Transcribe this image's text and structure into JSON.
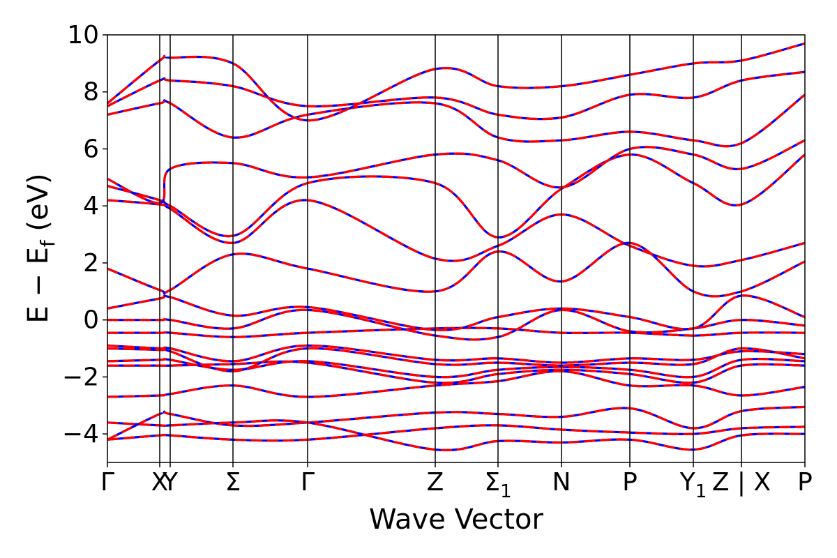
{
  "chart_data": {
    "type": "line",
    "title": "",
    "xlabel": "Wave Vector",
    "ylabel": "E − E_f (eV)",
    "ylabel_parts": {
      "main": "E − E",
      "sub": "f",
      "unit": " (eV)"
    },
    "ylim": [
      -5,
      10
    ],
    "yticks": [
      -4,
      -2,
      0,
      2,
      4,
      6,
      8,
      10
    ],
    "ytick_labels": [
      "−4",
      "−2",
      "0",
      "2",
      "4",
      "6",
      "8",
      "10"
    ],
    "xlim": [
      0,
      1000
    ],
    "kpoints": [
      {
        "x": 0,
        "label": "Γ"
      },
      {
        "x": 75,
        "label": "X"
      },
      {
        "x": 90,
        "label": "Y"
      },
      {
        "x": 180,
        "label": "Σ"
      },
      {
        "x": 287,
        "label": "Γ"
      },
      {
        "x": 470,
        "label": "Z"
      },
      {
        "x": 560,
        "label": "Σ",
        "sub": "1"
      },
      {
        "x": 651,
        "label": "N"
      },
      {
        "x": 749,
        "label": "P"
      },
      {
        "x": 840,
        "label": "Y",
        "sub": "1"
      },
      {
        "x": 909,
        "label": "Z|X",
        "display": "Z | X"
      },
      {
        "x": 1000,
        "label": "P"
      }
    ],
    "band_colors": {
      "primary": "#ff0000",
      "overlay": "#0000ff"
    },
    "grid": false,
    "legend": "none",
    "bands": [
      {
        "x": [
          0,
          75,
          90,
          180,
          287,
          470,
          560,
          651,
          749,
          840,
          909,
          1000
        ],
        "y": [
          -4.2,
          -3.3,
          -3.3,
          -3.7,
          -3.6,
          -3.25,
          -3.3,
          -3.4,
          -3.1,
          -3.8,
          -3.2,
          -3.05
        ]
      },
      {
        "x": [
          0,
          75,
          90,
          180,
          287,
          470,
          560,
          651,
          749,
          840,
          909,
          1000
        ],
        "y": [
          -4.2,
          -4.05,
          -4.05,
          -4.2,
          -4.2,
          -3.8,
          -3.7,
          -3.85,
          -3.95,
          -4.0,
          -3.8,
          -3.75
        ]
      },
      {
        "x": [
          0,
          75,
          90,
          180,
          287,
          470,
          560,
          651,
          749,
          840,
          909,
          1000
        ],
        "y": [
          -3.6,
          -3.7,
          -3.7,
          -3.6,
          -3.6,
          -4.55,
          -4.25,
          -4.3,
          -4.2,
          -4.55,
          -4.05,
          -4.0
        ]
      },
      {
        "x": [
          0,
          75,
          90,
          180,
          287,
          470,
          560,
          651,
          749,
          840,
          909,
          1000
        ],
        "y": [
          -2.7,
          -2.65,
          -2.6,
          -2.3,
          -2.7,
          -2.3,
          -2.15,
          -1.8,
          -2.3,
          -2.3,
          -2.65,
          -2.35
        ]
      },
      {
        "x": [
          0,
          75,
          90,
          180,
          287,
          470,
          560,
          651,
          749,
          840,
          909,
          1000
        ],
        "y": [
          -1.6,
          -1.6,
          -1.6,
          -1.55,
          -1.5,
          -2.2,
          -1.9,
          -1.75,
          -1.9,
          -2.2,
          -1.6,
          -1.6
        ]
      },
      {
        "x": [
          0,
          75,
          90,
          180,
          287,
          470,
          560,
          651,
          749,
          840,
          909,
          1000
        ],
        "y": [
          -1.45,
          -1.4,
          -1.4,
          -1.75,
          -1.45,
          -2.0,
          -1.75,
          -1.65,
          -1.75,
          -2.0,
          -1.4,
          -1.45
        ]
      },
      {
        "x": [
          0,
          75,
          90,
          180,
          287,
          470,
          560,
          651,
          749,
          840,
          909,
          1000
        ],
        "y": [
          -1.0,
          -1.05,
          -1.1,
          -1.8,
          -1.0,
          -1.55,
          -1.5,
          -1.6,
          -1.5,
          -1.55,
          -1.0,
          -1.35
        ]
      },
      {
        "x": [
          0,
          75,
          90,
          180,
          287,
          470,
          560,
          651,
          749,
          840,
          909,
          1000
        ],
        "y": [
          -0.9,
          -1.0,
          -1.0,
          -1.45,
          -0.9,
          -1.4,
          -1.35,
          -1.5,
          -1.35,
          -1.4,
          -1.1,
          -1.2
        ]
      },
      {
        "x": [
          0,
          75,
          90,
          180,
          287,
          470,
          560,
          651,
          749,
          840,
          909,
          1000
        ],
        "y": [
          -0.45,
          -0.45,
          -0.45,
          -0.6,
          -0.45,
          -0.3,
          -0.3,
          -0.45,
          -0.45,
          -0.55,
          -0.45,
          -0.45
        ]
      },
      {
        "x": [
          0,
          75,
          90,
          180,
          287,
          470,
          560,
          651,
          749,
          840,
          909,
          1000
        ],
        "y": [
          0.0,
          0.0,
          0.0,
          -0.3,
          0.35,
          -0.55,
          -0.6,
          0.35,
          -0.4,
          -0.3,
          0.0,
          -0.2
        ]
      },
      {
        "x": [
          0,
          75,
          90,
          180,
          287,
          470,
          560,
          651,
          749,
          840,
          909,
          1000
        ],
        "y": [
          0.4,
          0.75,
          0.8,
          0.15,
          0.45,
          -0.35,
          0.1,
          0.4,
          0.1,
          -0.3,
          0.85,
          0.1
        ]
      },
      {
        "x": [
          0,
          75,
          90,
          180,
          287,
          470,
          560,
          651,
          749,
          840,
          909,
          1000
        ],
        "y": [
          1.8,
          1.05,
          1.05,
          2.3,
          1.8,
          1.0,
          2.4,
          1.35,
          2.7,
          1.0,
          1.0,
          2.05
        ]
      },
      {
        "x": [
          0,
          75,
          90,
          180,
          287,
          470,
          560,
          651,
          749,
          840,
          909,
          1000
        ],
        "y": [
          4.2,
          4.05,
          3.9,
          2.7,
          4.2,
          2.15,
          2.6,
          3.7,
          2.6,
          1.9,
          2.1,
          2.7
        ]
      },
      {
        "x": [
          0,
          75,
          90,
          180,
          287,
          470,
          560,
          651,
          749,
          840,
          909,
          1000
        ],
        "y": [
          4.7,
          4.2,
          4.0,
          2.95,
          4.8,
          4.8,
          2.9,
          4.6,
          5.8,
          4.8,
          4.05,
          5.8
        ]
      },
      {
        "x": [
          0,
          75,
          90,
          180,
          287,
          470,
          560,
          651,
          749,
          840,
          909,
          1000
        ],
        "y": [
          4.95,
          4.1,
          5.3,
          5.5,
          5.0,
          5.8,
          5.6,
          4.65,
          6.0,
          5.8,
          5.3,
          6.3
        ]
      },
      {
        "x": [
          0,
          75,
          90,
          180,
          287,
          470,
          560,
          651,
          749,
          840,
          909,
          1000
        ],
        "y": [
          7.2,
          7.6,
          7.6,
          6.4,
          7.2,
          7.6,
          6.4,
          6.3,
          6.6,
          6.3,
          6.2,
          7.9
        ]
      },
      {
        "x": [
          0,
          75,
          90,
          180,
          287,
          470,
          560,
          651,
          749,
          840,
          909,
          1000
        ],
        "y": [
          7.5,
          8.4,
          8.4,
          8.2,
          7.5,
          7.8,
          7.2,
          7.1,
          7.9,
          7.8,
          8.4,
          8.7
        ]
      },
      {
        "x": [
          0,
          75,
          90,
          180,
          287,
          470,
          560,
          651,
          749,
          840,
          909,
          1000
        ],
        "y": [
          7.6,
          9.1,
          9.2,
          9.0,
          7.0,
          8.8,
          8.2,
          8.2,
          8.6,
          9.0,
          9.1,
          9.7
        ]
      }
    ]
  }
}
